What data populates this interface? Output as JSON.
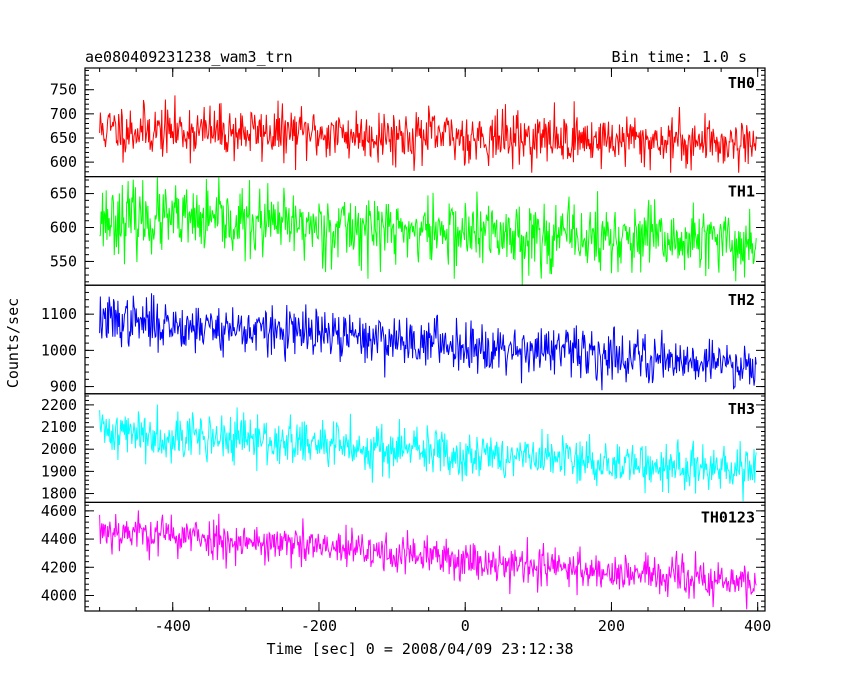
{
  "chart_data": {
    "type": "line",
    "title": "ae080409231238_wam3_trn",
    "bin_time_label": "Bin time: 1.0 s",
    "xlabel": "Time [sec] 0 = 2008/04/09 23:12:38",
    "ylabel": "Counts/sec",
    "xlim": [
      -520,
      410
    ],
    "x_ticks": [
      -400,
      -200,
      0,
      200,
      400
    ],
    "x_range": [
      -500,
      398
    ],
    "grid": false,
    "series": [
      {
        "name": "TH0",
        "color": "#ff0000",
        "ylim": [
          570,
          795
        ],
        "y_ticks": [
          600,
          650,
          700,
          750
        ],
        "mean_start": 668,
        "mean_end": 640,
        "noise_sd": 27,
        "y_min": 578,
        "y_max": 795,
        "seed": 11
      },
      {
        "name": "TH1",
        "color": "#00ff00",
        "ylim": [
          515,
          675
        ],
        "y_ticks": [
          550,
          600,
          650
        ],
        "mean_start": 615,
        "mean_end": 575,
        "noise_sd": 25,
        "y_min": 515,
        "y_max": 675,
        "seed": 23
      },
      {
        "name": "TH2",
        "color": "#0000ff",
        "ylim": [
          880,
          1180
        ],
        "y_ticks": [
          900,
          1000,
          1100
        ],
        "mean_start": 1085,
        "mean_end": 960,
        "noise_sd": 34,
        "y_min": 885,
        "y_max": 1180,
        "seed": 37
      },
      {
        "name": "TH3",
        "color": "#00ffff",
        "ylim": [
          1760,
          2250
        ],
        "y_ticks": [
          1800,
          1900,
          2000,
          2100,
          2200
        ],
        "mean_start": 2085,
        "mean_end": 1895,
        "noise_sd": 55,
        "y_min": 1765,
        "y_max": 2250,
        "seed": 41
      },
      {
        "name": "TH0123",
        "color": "#ff00ff",
        "ylim": [
          3890,
          4660
        ],
        "y_ticks": [
          4000,
          4200,
          4400,
          4600
        ],
        "mean_start": 4470,
        "mean_end": 4080,
        "noise_sd": 72,
        "y_min": 3895,
        "y_max": 4660,
        "seed": 53
      }
    ]
  }
}
